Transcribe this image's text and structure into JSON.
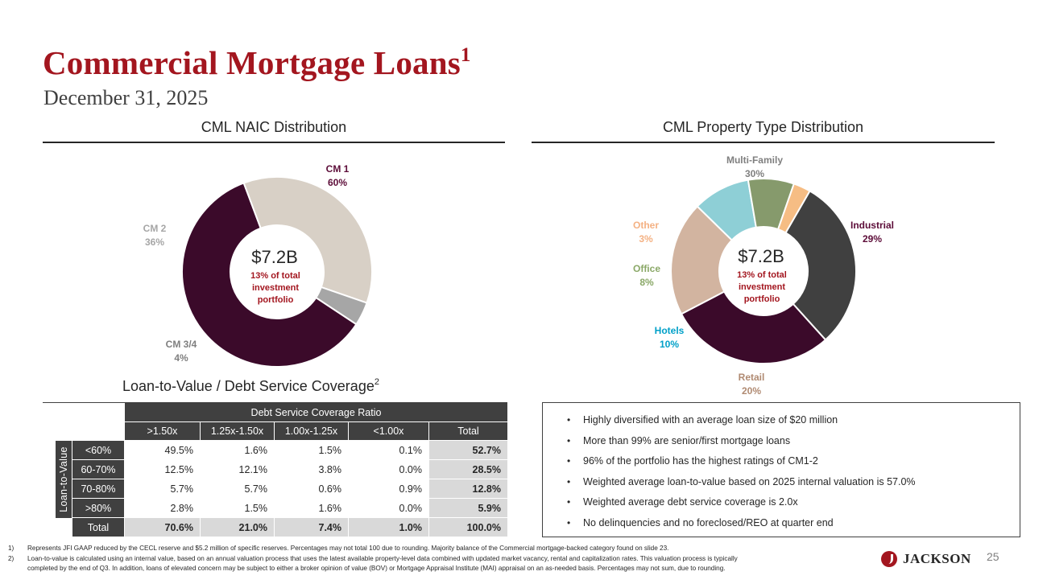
{
  "header": {
    "title": "Commercial Mortgage Loans",
    "title_sup": "1",
    "date": "December 31, 2025"
  },
  "colors": {
    "brand_red": "#a3161f",
    "dark_purple": "#3b0a2a",
    "dark_gray": "#404040",
    "light_gray": "#d9d9d9"
  },
  "chart_data": [
    {
      "type": "pie",
      "title": "CML NAIC Distribution",
      "center": {
        "value": "$7.2B",
        "note_lines": [
          "13% of total",
          "investment",
          "portfolio"
        ]
      },
      "slices": [
        {
          "name": "CM 1",
          "value": 60,
          "label": "60%",
          "color": "#3b0a2a",
          "label_color": "#5c0c38"
        },
        {
          "name": "CM 2",
          "value": 36,
          "label": "36%",
          "color": "#d8d0c6",
          "label_color": "#a6a6a6"
        },
        {
          "name": "CM 3/4",
          "value": 4,
          "label": "4%",
          "color": "#a6a6a6",
          "label_color": "#7f7f7f"
        }
      ]
    },
    {
      "type": "pie",
      "title": "CML Property Type Distribution",
      "center": {
        "value": "$7.2B",
        "note_lines": [
          "13% of total",
          "investment",
          "portfolio"
        ]
      },
      "slices": [
        {
          "name": "Multi-Family",
          "value": 30,
          "label": "30%",
          "color": "#404040",
          "label_color": "#7f7f7f"
        },
        {
          "name": "Industrial",
          "value": 29,
          "label": "29%",
          "color": "#3b0a2a",
          "label_color": "#5c0c38"
        },
        {
          "name": "Retail",
          "value": 20,
          "label": "20%",
          "color": "#d2b4a0",
          "label_color": "#b08a72"
        },
        {
          "name": "Hotels",
          "value": 10,
          "label": "10%",
          "color": "#8ecfd6",
          "label_color": "#00a0c8"
        },
        {
          "name": "Office",
          "value": 8,
          "label": "8%",
          "color": "#869a6c",
          "label_color": "#8aa867"
        },
        {
          "name": "Other",
          "value": 3,
          "label": "3%",
          "color": "#f6bd84",
          "label_color": "#f4b183"
        }
      ]
    }
  ],
  "ltv": {
    "title": "Loan-to-Value / Debt Service Coverage",
    "title_sup": "2",
    "dscr_header": "Debt Service Coverage Ratio",
    "row_axis_label": "Loan-to-Value",
    "columns": [
      ">1.50x",
      "1.25x-1.50x",
      "1.00x-1.25x",
      "<1.00x",
      "Total"
    ],
    "rows": [
      {
        "label": "<60%",
        "values": [
          "49.5%",
          "1.6%",
          "1.5%",
          "0.1%",
          "52.7%"
        ]
      },
      {
        "label": "60-70%",
        "values": [
          "12.5%",
          "12.1%",
          "3.8%",
          "0.0%",
          "28.5%"
        ]
      },
      {
        "label": "70-80%",
        "values": [
          "5.7%",
          "5.7%",
          "0.6%",
          "0.9%",
          "12.8%"
        ]
      },
      {
        "label": ">80%",
        "values": [
          "2.8%",
          "1.5%",
          "1.6%",
          "0.0%",
          "5.9%"
        ]
      },
      {
        "label": "Total",
        "values": [
          "70.6%",
          "21.0%",
          "7.4%",
          "1.0%",
          "100.0%"
        ]
      }
    ]
  },
  "bullets": [
    "Highly diversified with an average loan size of $20 million",
    "More than 99% are senior/first mortgage loans",
    "96% of the portfolio has the highest ratings of CM1-2",
    "Weighted average loan-to-value based on 2025 internal valuation is 57.0%",
    "Weighted average debt service coverage is 2.0x",
    "No delinquencies and no foreclosed/REO at quarter end"
  ],
  "footnotes": [
    {
      "num": "1)",
      "lines": [
        "Represents JFI GAAP reduced by the CECL reserve and $5.2 million of specific reserves.  Percentages may not total 100 due to rounding.  Majority balance of the Commercial mortgage-backed category found on slide 23."
      ]
    },
    {
      "num": "2)",
      "lines": [
        "Loan-to-value is calculated using an internal value, based on an annual valuation process that uses the latest available property-level data combined with updated market vacancy, rental and capitalization rates.  This valuation process is typically",
        "completed by the end of Q3.  In addition, loans of elevated concern may be subject to either a broker opinion of value (BOV) or Mortgage Appraisal Institute (MAI) appraisal on an as-needed basis.  Percentages may not sum, due to rounding."
      ]
    }
  ],
  "page_number": "25",
  "logo_text": "JACKSON"
}
